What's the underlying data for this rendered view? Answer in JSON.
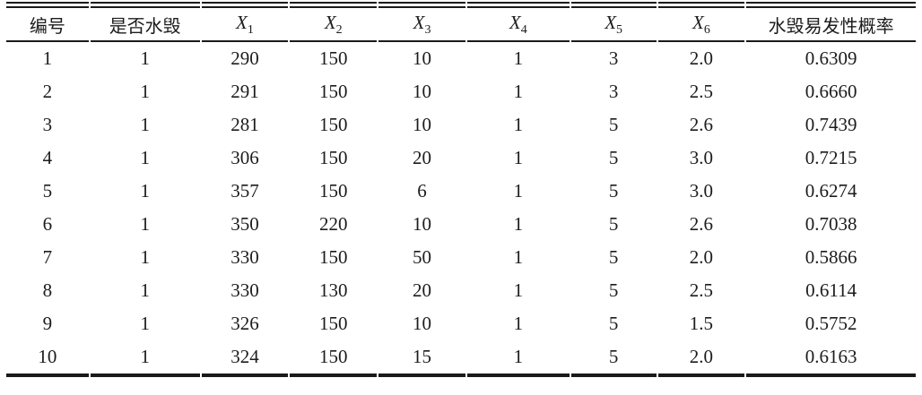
{
  "colors": {
    "background": "#ffffff",
    "text": "#1c1c1c",
    "rule": "#1a1a1a"
  },
  "table": {
    "columns": [
      {
        "label": "编号"
      },
      {
        "label": "是否水毁"
      },
      {
        "base": "X",
        "sub": "1"
      },
      {
        "base": "X",
        "sub": "2"
      },
      {
        "base": "X",
        "sub": "3"
      },
      {
        "base": "X",
        "sub": "4"
      },
      {
        "base": "X",
        "sub": "5"
      },
      {
        "base": "X",
        "sub": "6"
      },
      {
        "label": "水毁易发性概率"
      }
    ],
    "rows": [
      [
        "1",
        "1",
        "290",
        "150",
        "10",
        "1",
        "3",
        "2.0",
        "0.6309"
      ],
      [
        "2",
        "1",
        "291",
        "150",
        "10",
        "1",
        "3",
        "2.5",
        "0.6660"
      ],
      [
        "3",
        "1",
        "281",
        "150",
        "10",
        "1",
        "5",
        "2.6",
        "0.7439"
      ],
      [
        "4",
        "1",
        "306",
        "150",
        "20",
        "1",
        "5",
        "3.0",
        "0.7215"
      ],
      [
        "5",
        "1",
        "357",
        "150",
        "6",
        "1",
        "5",
        "3.0",
        "0.6274"
      ],
      [
        "6",
        "1",
        "350",
        "220",
        "10",
        "1",
        "5",
        "2.6",
        "0.7038"
      ],
      [
        "7",
        "1",
        "330",
        "150",
        "50",
        "1",
        "5",
        "2.0",
        "0.5866"
      ],
      [
        "8",
        "1",
        "330",
        "130",
        "20",
        "1",
        "5",
        "2.5",
        "0.6114"
      ],
      [
        "9",
        "1",
        "326",
        "150",
        "10",
        "1",
        "5",
        "1.5",
        "0.5752"
      ],
      [
        "10",
        "1",
        "324",
        "150",
        "15",
        "1",
        "5",
        "2.0",
        "0.6163"
      ]
    ]
  }
}
